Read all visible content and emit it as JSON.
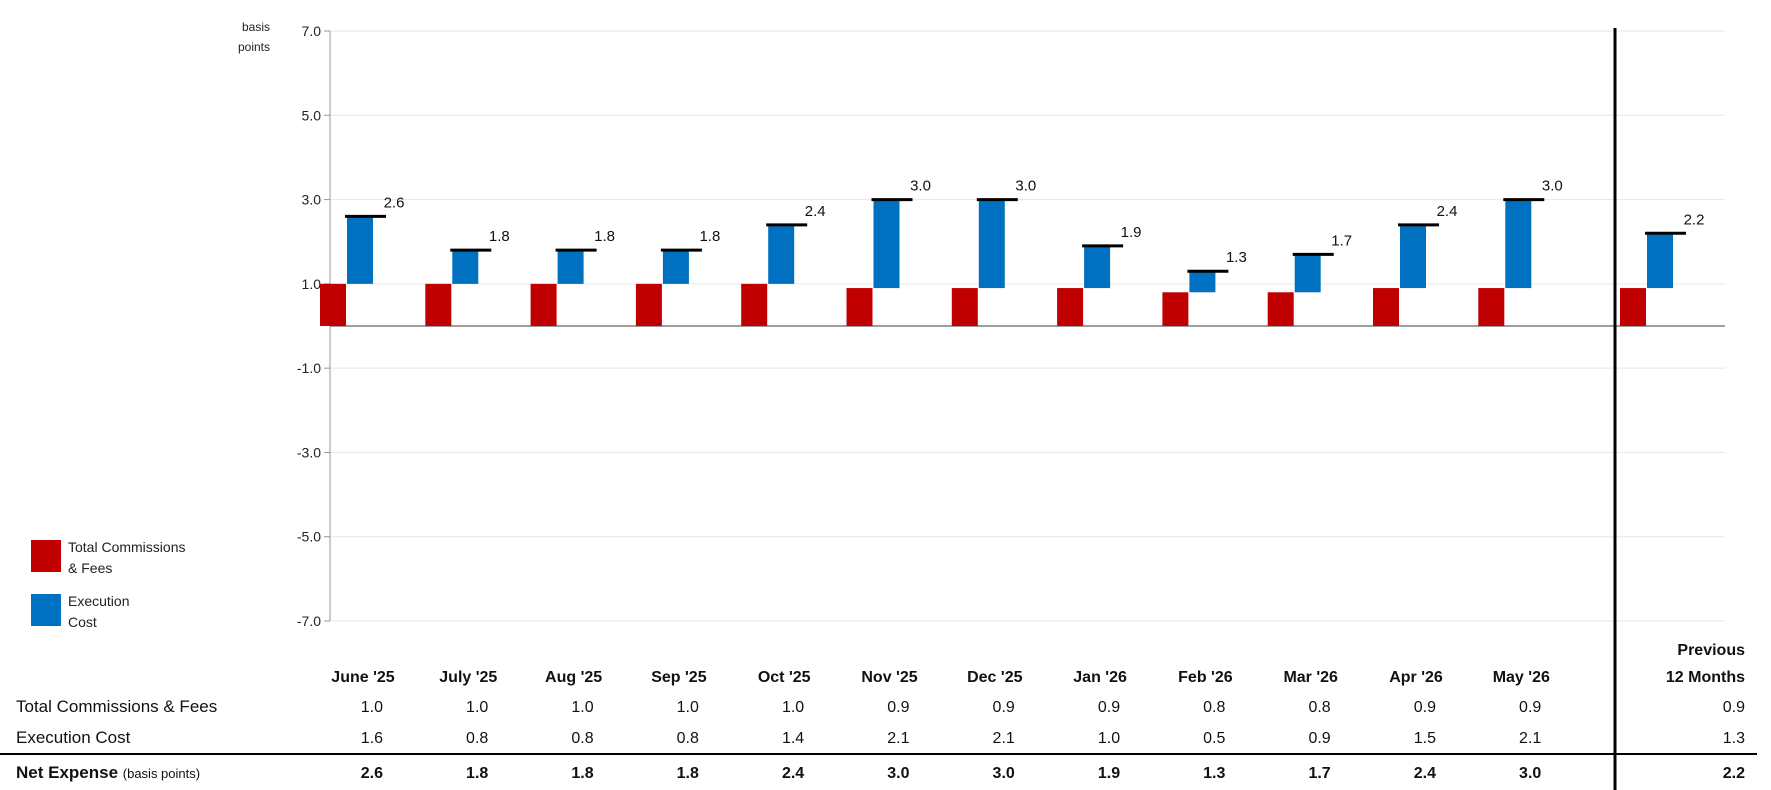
{
  "chart_data": {
    "type": "bar",
    "y_unit_label": [
      "basis",
      "points"
    ],
    "yticks": [
      7.0,
      5.0,
      3.0,
      1.0,
      -1.0,
      -3.0,
      -5.0,
      -7.0
    ],
    "ylim": [
      -7.0,
      7.0
    ],
    "categories": [
      "June '25",
      "July '25",
      "Aug '25",
      "Sep '25",
      "Oct '25",
      "Nov '25",
      "Dec '25",
      "Jan '26",
      "Feb '26",
      "Mar '26",
      "Apr '26",
      "May '26"
    ],
    "summary_category": [
      "Previous",
      "12 Months"
    ],
    "series": [
      {
        "name": "Total Commissions & Fees",
        "legend": [
          "Total Commissions",
          "& Fees"
        ],
        "color": "#C00000",
        "values": [
          1.0,
          1.0,
          1.0,
          1.0,
          1.0,
          0.9,
          0.9,
          0.9,
          0.8,
          0.8,
          0.9,
          0.9
        ],
        "summary": 0.9
      },
      {
        "name": "Execution Cost",
        "legend": [
          "Execution",
          "Cost"
        ],
        "color": "#0070C0",
        "values": [
          1.6,
          0.8,
          0.8,
          0.8,
          1.4,
          2.1,
          2.1,
          1.0,
          0.5,
          0.9,
          1.5,
          2.1
        ],
        "summary": 1.3
      }
    ],
    "net_expense": [
      2.6,
      1.8,
      1.8,
      1.8,
      2.4,
      3.0,
      3.0,
      1.9,
      1.3,
      1.7,
      2.4,
      3.0
    ],
    "net_expense_summary": 2.2,
    "table": {
      "rows": [
        {
          "label": "Total Commissions & Fees",
          "values": [
            "1.0",
            "1.0",
            "1.0",
            "1.0",
            "1.0",
            "0.9",
            "0.9",
            "0.9",
            "0.8",
            "0.8",
            "0.9",
            "0.9"
          ],
          "summary": "0.9"
        },
        {
          "label": "Execution Cost",
          "values": [
            "1.6",
            "0.8",
            "0.8",
            "0.8",
            "1.4",
            "2.1",
            "2.1",
            "1.0",
            "0.5",
            "0.9",
            "1.5",
            "2.1"
          ],
          "summary": "1.3"
        }
      ],
      "net_row": {
        "label": "Net Expense",
        "sublabel": "(basis points)",
        "values": [
          "2.6",
          "1.8",
          "1.8",
          "1.8",
          "2.4",
          "3.0",
          "3.0",
          "1.9",
          "1.3",
          "1.7",
          "2.4",
          "3.0"
        ],
        "summary": "2.2"
      }
    }
  }
}
